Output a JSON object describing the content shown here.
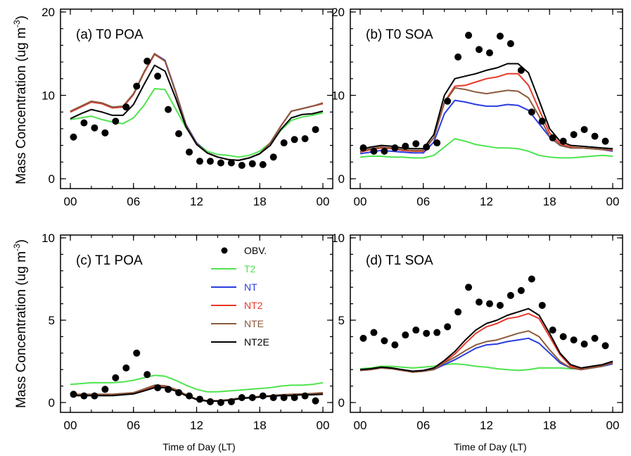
{
  "figure": {
    "y_axis_label_top": "Mass Concentration (ug m",
    "y_axis_label_bottom": "Mass Concentration (ug m",
    "y_axis_label_sup": "-3",
    "y_axis_label_close": ")",
    "x_axis_label": "Time of Day (LT)"
  },
  "legend": {
    "items": [
      {
        "label": "OBV.",
        "kind": "marker",
        "color": "#000000"
      },
      {
        "label": "T2",
        "kind": "line",
        "color": "#4ee44e"
      },
      {
        "label": "NT",
        "kind": "line",
        "color": "#2b3de0"
      },
      {
        "label": "NT2",
        "kind": "line",
        "color": "#e8382a"
      },
      {
        "label": "NTE",
        "kind": "line",
        "color": "#8b5a3c"
      },
      {
        "label": "NT2E",
        "kind": "line",
        "color": "#000000"
      }
    ]
  },
  "chart_data": [
    {
      "type": "line",
      "title": "(a) T0 POA",
      "xlabel": "",
      "ylabel": "Mass Concentration (ug m-3)",
      "x": [
        0,
        1,
        2,
        3,
        4,
        5,
        6,
        7,
        8,
        9,
        10,
        11,
        12,
        13,
        14,
        15,
        16,
        17,
        18,
        19,
        20,
        21,
        22,
        23,
        24
      ],
      "xticks": [
        "00",
        "06",
        "12",
        "18",
        "00"
      ],
      "xlim": [
        0,
        24
      ],
      "ylim": [
        0,
        20
      ],
      "yticks": [
        0,
        10,
        20
      ],
      "series": [
        {
          "name": "T2",
          "color": "#4ee44e",
          "values": [
            7.1,
            7.3,
            7.5,
            7.1,
            6.8,
            6.6,
            7.3,
            8.8,
            10.8,
            10.7,
            8.4,
            6.1,
            4.3,
            3.3,
            2.9,
            2.8,
            2.6,
            2.8,
            3.3,
            4.3,
            5.8,
            7.0,
            7.4,
            7.6,
            7.9
          ]
        },
        {
          "name": "NT",
          "color": "#2b3de0",
          "values": [
            8.0,
            8.6,
            9.2,
            9.0,
            8.5,
            8.6,
            10.1,
            12.7,
            15.0,
            14.2,
            10.5,
            6.5,
            4.3,
            3.1,
            2.6,
            2.3,
            2.2,
            2.5,
            3.0,
            4.3,
            6.3,
            8.1,
            8.4,
            8.7,
            9.0
          ]
        },
        {
          "name": "NT2",
          "color": "#e8382a",
          "values": [
            8.0,
            8.6,
            9.2,
            9.0,
            8.5,
            8.6,
            10.1,
            12.7,
            14.9,
            14.1,
            10.4,
            6.4,
            4.2,
            3.1,
            2.6,
            2.3,
            2.2,
            2.5,
            3.0,
            4.3,
            6.3,
            8.1,
            8.4,
            8.7,
            9.0
          ]
        },
        {
          "name": "NTE",
          "color": "#8b5a3c",
          "values": [
            8.1,
            8.7,
            9.3,
            9.1,
            8.6,
            8.7,
            10.2,
            12.8,
            15.0,
            14.1,
            10.4,
            6.4,
            4.2,
            3.1,
            2.6,
            2.3,
            2.2,
            2.5,
            3.0,
            4.3,
            6.3,
            8.1,
            8.4,
            8.7,
            9.1
          ]
        },
        {
          "name": "NT2E",
          "color": "#000000",
          "values": [
            7.2,
            7.8,
            8.3,
            8.0,
            7.6,
            7.6,
            8.9,
            11.3,
            13.6,
            12.9,
            9.7,
            6.2,
            4.1,
            3.1,
            2.6,
            2.3,
            2.2,
            2.5,
            3.0,
            4.0,
            5.9,
            7.3,
            7.7,
            7.8,
            8.1
          ]
        }
      ],
      "markers": {
        "name": "OBV.",
        "x": [
          0.3,
          1.3,
          2.3,
          3.3,
          4.3,
          5.3,
          6.3,
          7.3,
          8.3,
          9.3,
          10.3,
          11.3,
          12.3,
          13.3,
          14.3,
          15.3,
          16.3,
          17.3,
          18.3,
          19.3,
          20.3,
          21.3,
          22.3,
          23.3
        ],
        "values": [
          5.0,
          6.7,
          6.1,
          5.5,
          6.9,
          8.6,
          11.1,
          14.1,
          12.3,
          8.3,
          5.4,
          3.2,
          2.1,
          2.1,
          1.9,
          1.9,
          1.6,
          1.8,
          1.7,
          2.6,
          4.3,
          4.7,
          4.8,
          5.9
        ]
      }
    },
    {
      "type": "line",
      "title": "(b) T0 SOA",
      "xlabel": "",
      "ylabel": "",
      "x": [
        0,
        1,
        2,
        3,
        4,
        5,
        6,
        7,
        8,
        9,
        10,
        11,
        12,
        13,
        14,
        15,
        16,
        17,
        18,
        19,
        20,
        21,
        22,
        23,
        24
      ],
      "xticks": [
        "00",
        "06",
        "12",
        "18",
        "00"
      ],
      "xlim": [
        0,
        24
      ],
      "ylim": [
        0,
        20
      ],
      "yticks": [
        0,
        10,
        20
      ],
      "series": [
        {
          "name": "T2",
          "color": "#4ee44e",
          "values": [
            2.6,
            2.7,
            2.7,
            2.6,
            2.6,
            2.5,
            2.5,
            2.8,
            3.8,
            4.8,
            4.5,
            4.1,
            3.9,
            3.7,
            3.7,
            3.6,
            3.3,
            2.8,
            2.6,
            2.5,
            2.5,
            2.6,
            2.7,
            2.8,
            2.7
          ]
        },
        {
          "name": "NT",
          "color": "#2b3de0",
          "values": [
            3.0,
            3.2,
            3.4,
            3.3,
            3.2,
            3.1,
            3.1,
            4.4,
            7.8,
            9.4,
            9.2,
            8.9,
            8.7,
            8.7,
            8.9,
            8.8,
            8.2,
            6.6,
            5.0,
            4.0,
            3.7,
            3.7,
            3.6,
            3.5,
            3.3
          ]
        },
        {
          "name": "NT2",
          "color": "#e8382a",
          "values": [
            3.2,
            3.5,
            3.7,
            3.6,
            3.4,
            3.3,
            3.3,
            4.9,
            9.2,
            11.1,
            11.2,
            11.6,
            12.0,
            12.2,
            12.6,
            12.6,
            11.2,
            8.3,
            5.5,
            4.2,
            3.8,
            3.7,
            3.6,
            3.5,
            3.4
          ]
        },
        {
          "name": "NTE",
          "color": "#8b5a3c",
          "values": [
            3.3,
            3.6,
            3.8,
            3.7,
            3.5,
            3.4,
            3.4,
            4.9,
            9.1,
            10.9,
            10.7,
            10.4,
            10.2,
            10.4,
            10.6,
            10.5,
            9.7,
            7.5,
            5.1,
            4.0,
            3.7,
            3.7,
            3.6,
            3.5,
            3.5
          ]
        },
        {
          "name": "NT2E",
          "color": "#000000",
          "values": [
            3.5,
            3.8,
            4.0,
            3.9,
            3.7,
            3.6,
            3.6,
            5.3,
            10.0,
            12.0,
            12.3,
            12.6,
            13.0,
            13.3,
            13.8,
            13.8,
            12.7,
            9.4,
            6.0,
            4.5,
            4.0,
            3.9,
            3.8,
            3.7,
            3.6
          ]
        }
      ],
      "markers": {
        "name": "OBV.",
        "x": [
          0.3,
          1.3,
          2.3,
          3.3,
          4.3,
          5.3,
          6.3,
          7.3,
          8.3,
          9.3,
          10.3,
          11.3,
          12.3,
          13.3,
          14.3,
          15.3,
          16.3,
          17.3,
          18.3,
          19.3,
          20.3,
          21.3,
          22.3,
          23.3
        ],
        "values": [
          3.7,
          3.3,
          3.3,
          3.7,
          3.9,
          4.2,
          3.8,
          4.3,
          9.3,
          14.6,
          17.2,
          15.5,
          15.1,
          17.1,
          16.2,
          13.0,
          8.0,
          6.9,
          4.9,
          4.5,
          5.3,
          5.9,
          5.1,
          4.5
        ]
      }
    },
    {
      "type": "line",
      "title": "(c) T1 POA",
      "xlabel": "Time of Day (LT)",
      "ylabel": "Mass Concentration (ug m-3)",
      "x": [
        0,
        1,
        2,
        3,
        4,
        5,
        6,
        7,
        8,
        9,
        10,
        11,
        12,
        13,
        14,
        15,
        16,
        17,
        18,
        19,
        20,
        21,
        22,
        23,
        24
      ],
      "xticks": [
        "00",
        "06",
        "12",
        "18",
        "00"
      ],
      "xlim": [
        0,
        24
      ],
      "ylim": [
        0,
        10
      ],
      "yticks": [
        0,
        5,
        10
      ],
      "series": [
        {
          "name": "T2",
          "color": "#4ee44e",
          "values": [
            1.1,
            1.15,
            1.2,
            1.2,
            1.2,
            1.25,
            1.35,
            1.5,
            1.65,
            1.6,
            1.35,
            1.05,
            0.8,
            0.65,
            0.65,
            0.7,
            0.75,
            0.8,
            0.85,
            0.9,
            1.0,
            1.05,
            1.05,
            1.1,
            1.2
          ]
        },
        {
          "name": "NT",
          "color": "#2b3de0",
          "values": [
            0.45,
            0.45,
            0.45,
            0.45,
            0.45,
            0.5,
            0.55,
            0.75,
            0.95,
            0.95,
            0.75,
            0.45,
            0.2,
            0.1,
            0.1,
            0.15,
            0.25,
            0.3,
            0.35,
            0.4,
            0.45,
            0.45,
            0.5,
            0.5,
            0.55
          ]
        },
        {
          "name": "NT2",
          "color": "#e8382a",
          "values": [
            0.45,
            0.45,
            0.45,
            0.45,
            0.45,
            0.5,
            0.55,
            0.78,
            1.0,
            0.98,
            0.75,
            0.45,
            0.2,
            0.1,
            0.1,
            0.15,
            0.25,
            0.3,
            0.35,
            0.4,
            0.45,
            0.45,
            0.5,
            0.5,
            0.55
          ]
        },
        {
          "name": "NTE",
          "color": "#8b5a3c",
          "values": [
            0.5,
            0.5,
            0.5,
            0.5,
            0.5,
            0.55,
            0.6,
            0.82,
            1.05,
            1.02,
            0.8,
            0.48,
            0.22,
            0.12,
            0.12,
            0.17,
            0.27,
            0.32,
            0.37,
            0.42,
            0.47,
            0.5,
            0.52,
            0.55,
            0.6
          ]
        },
        {
          "name": "NT2E",
          "color": "#000000",
          "values": [
            0.42,
            0.42,
            0.42,
            0.42,
            0.42,
            0.47,
            0.52,
            0.7,
            0.9,
            0.9,
            0.7,
            0.42,
            0.18,
            0.08,
            0.08,
            0.13,
            0.22,
            0.28,
            0.33,
            0.38,
            0.42,
            0.42,
            0.47,
            0.47,
            0.5
          ]
        }
      ],
      "markers": {
        "name": "OBV.",
        "x": [
          0.3,
          1.3,
          2.3,
          3.3,
          4.3,
          5.3,
          6.3,
          7.3,
          8.3,
          9.3,
          10.3,
          11.3,
          12.3,
          13.3,
          14.3,
          15.3,
          16.3,
          17.3,
          18.3,
          19.3,
          20.3,
          21.3,
          22.3,
          23.3
        ],
        "values": [
          0.5,
          0.4,
          0.4,
          0.8,
          1.5,
          2.1,
          3.0,
          1.7,
          0.9,
          0.8,
          0.6,
          0.4,
          0.2,
          0.05,
          0.0,
          0.05,
          0.3,
          0.3,
          0.4,
          0.3,
          0.3,
          0.3,
          0.4,
          0.1
        ]
      }
    },
    {
      "type": "line",
      "title": "(d) T1 SOA",
      "xlabel": "Time of Day (LT)",
      "ylabel": "",
      "x": [
        0,
        1,
        2,
        3,
        4,
        5,
        6,
        7,
        8,
        9,
        10,
        11,
        12,
        13,
        14,
        15,
        16,
        17,
        18,
        19,
        20,
        21,
        22,
        23,
        24
      ],
      "xticks": [
        "00",
        "06",
        "12",
        "18",
        "00"
      ],
      "xlim": [
        0,
        24
      ],
      "ylim": [
        0,
        10
      ],
      "yticks": [
        0,
        5,
        10
      ],
      "series": [
        {
          "name": "T2",
          "color": "#4ee44e",
          "values": [
            2.05,
            2.1,
            2.2,
            2.2,
            2.15,
            2.1,
            2.15,
            2.2,
            2.3,
            2.35,
            2.3,
            2.2,
            2.15,
            2.05,
            2.0,
            1.95,
            2.0,
            2.1,
            2.1,
            2.1,
            2.05,
            2.05,
            2.1,
            2.2,
            2.35
          ]
        },
        {
          "name": "NT",
          "color": "#2b3de0",
          "values": [
            1.95,
            2.0,
            2.1,
            2.05,
            1.95,
            1.85,
            1.9,
            2.0,
            2.3,
            2.6,
            2.95,
            3.3,
            3.5,
            3.55,
            3.7,
            3.8,
            3.9,
            3.6,
            3.0,
            2.4,
            2.1,
            2.0,
            2.1,
            2.2,
            2.35
          ]
        },
        {
          "name": "NT2",
          "color": "#e8382a",
          "values": [
            1.95,
            2.0,
            2.1,
            2.05,
            1.95,
            1.85,
            1.9,
            2.05,
            2.45,
            2.95,
            3.6,
            4.2,
            4.6,
            4.8,
            5.1,
            5.2,
            5.4,
            5.1,
            4.0,
            2.9,
            2.2,
            2.05,
            2.15,
            2.25,
            2.4
          ]
        },
        {
          "name": "NTE",
          "color": "#8b5a3c",
          "values": [
            1.95,
            2.0,
            2.1,
            2.05,
            1.95,
            1.85,
            1.9,
            2.0,
            2.4,
            2.75,
            3.15,
            3.5,
            3.7,
            3.8,
            4.0,
            4.2,
            4.35,
            4.0,
            3.2,
            2.5,
            2.1,
            2.0,
            2.1,
            2.2,
            2.45
          ]
        },
        {
          "name": "NT2E",
          "color": "#000000",
          "values": [
            2.0,
            2.05,
            2.15,
            2.1,
            2.0,
            1.9,
            1.95,
            2.1,
            2.55,
            3.1,
            3.8,
            4.4,
            4.8,
            5.0,
            5.3,
            5.5,
            5.7,
            5.3,
            4.2,
            3.0,
            2.3,
            2.1,
            2.2,
            2.3,
            2.5
          ]
        }
      ],
      "markers": {
        "name": "OBV.",
        "x": [
          0.3,
          1.3,
          2.3,
          3.3,
          4.3,
          5.3,
          6.3,
          7.3,
          8.3,
          9.3,
          10.3,
          11.3,
          12.3,
          13.3,
          14.3,
          15.3,
          16.3,
          17.3,
          18.3,
          19.3,
          20.3,
          21.3,
          22.3,
          23.3
        ],
        "values": [
          3.9,
          4.25,
          3.75,
          3.5,
          4.1,
          4.4,
          4.2,
          4.25,
          4.6,
          5.5,
          7.0,
          6.1,
          6.0,
          5.9,
          6.5,
          6.8,
          7.5,
          5.9,
          4.4,
          4.0,
          3.8,
          3.55,
          3.9,
          3.45
        ]
      }
    }
  ]
}
